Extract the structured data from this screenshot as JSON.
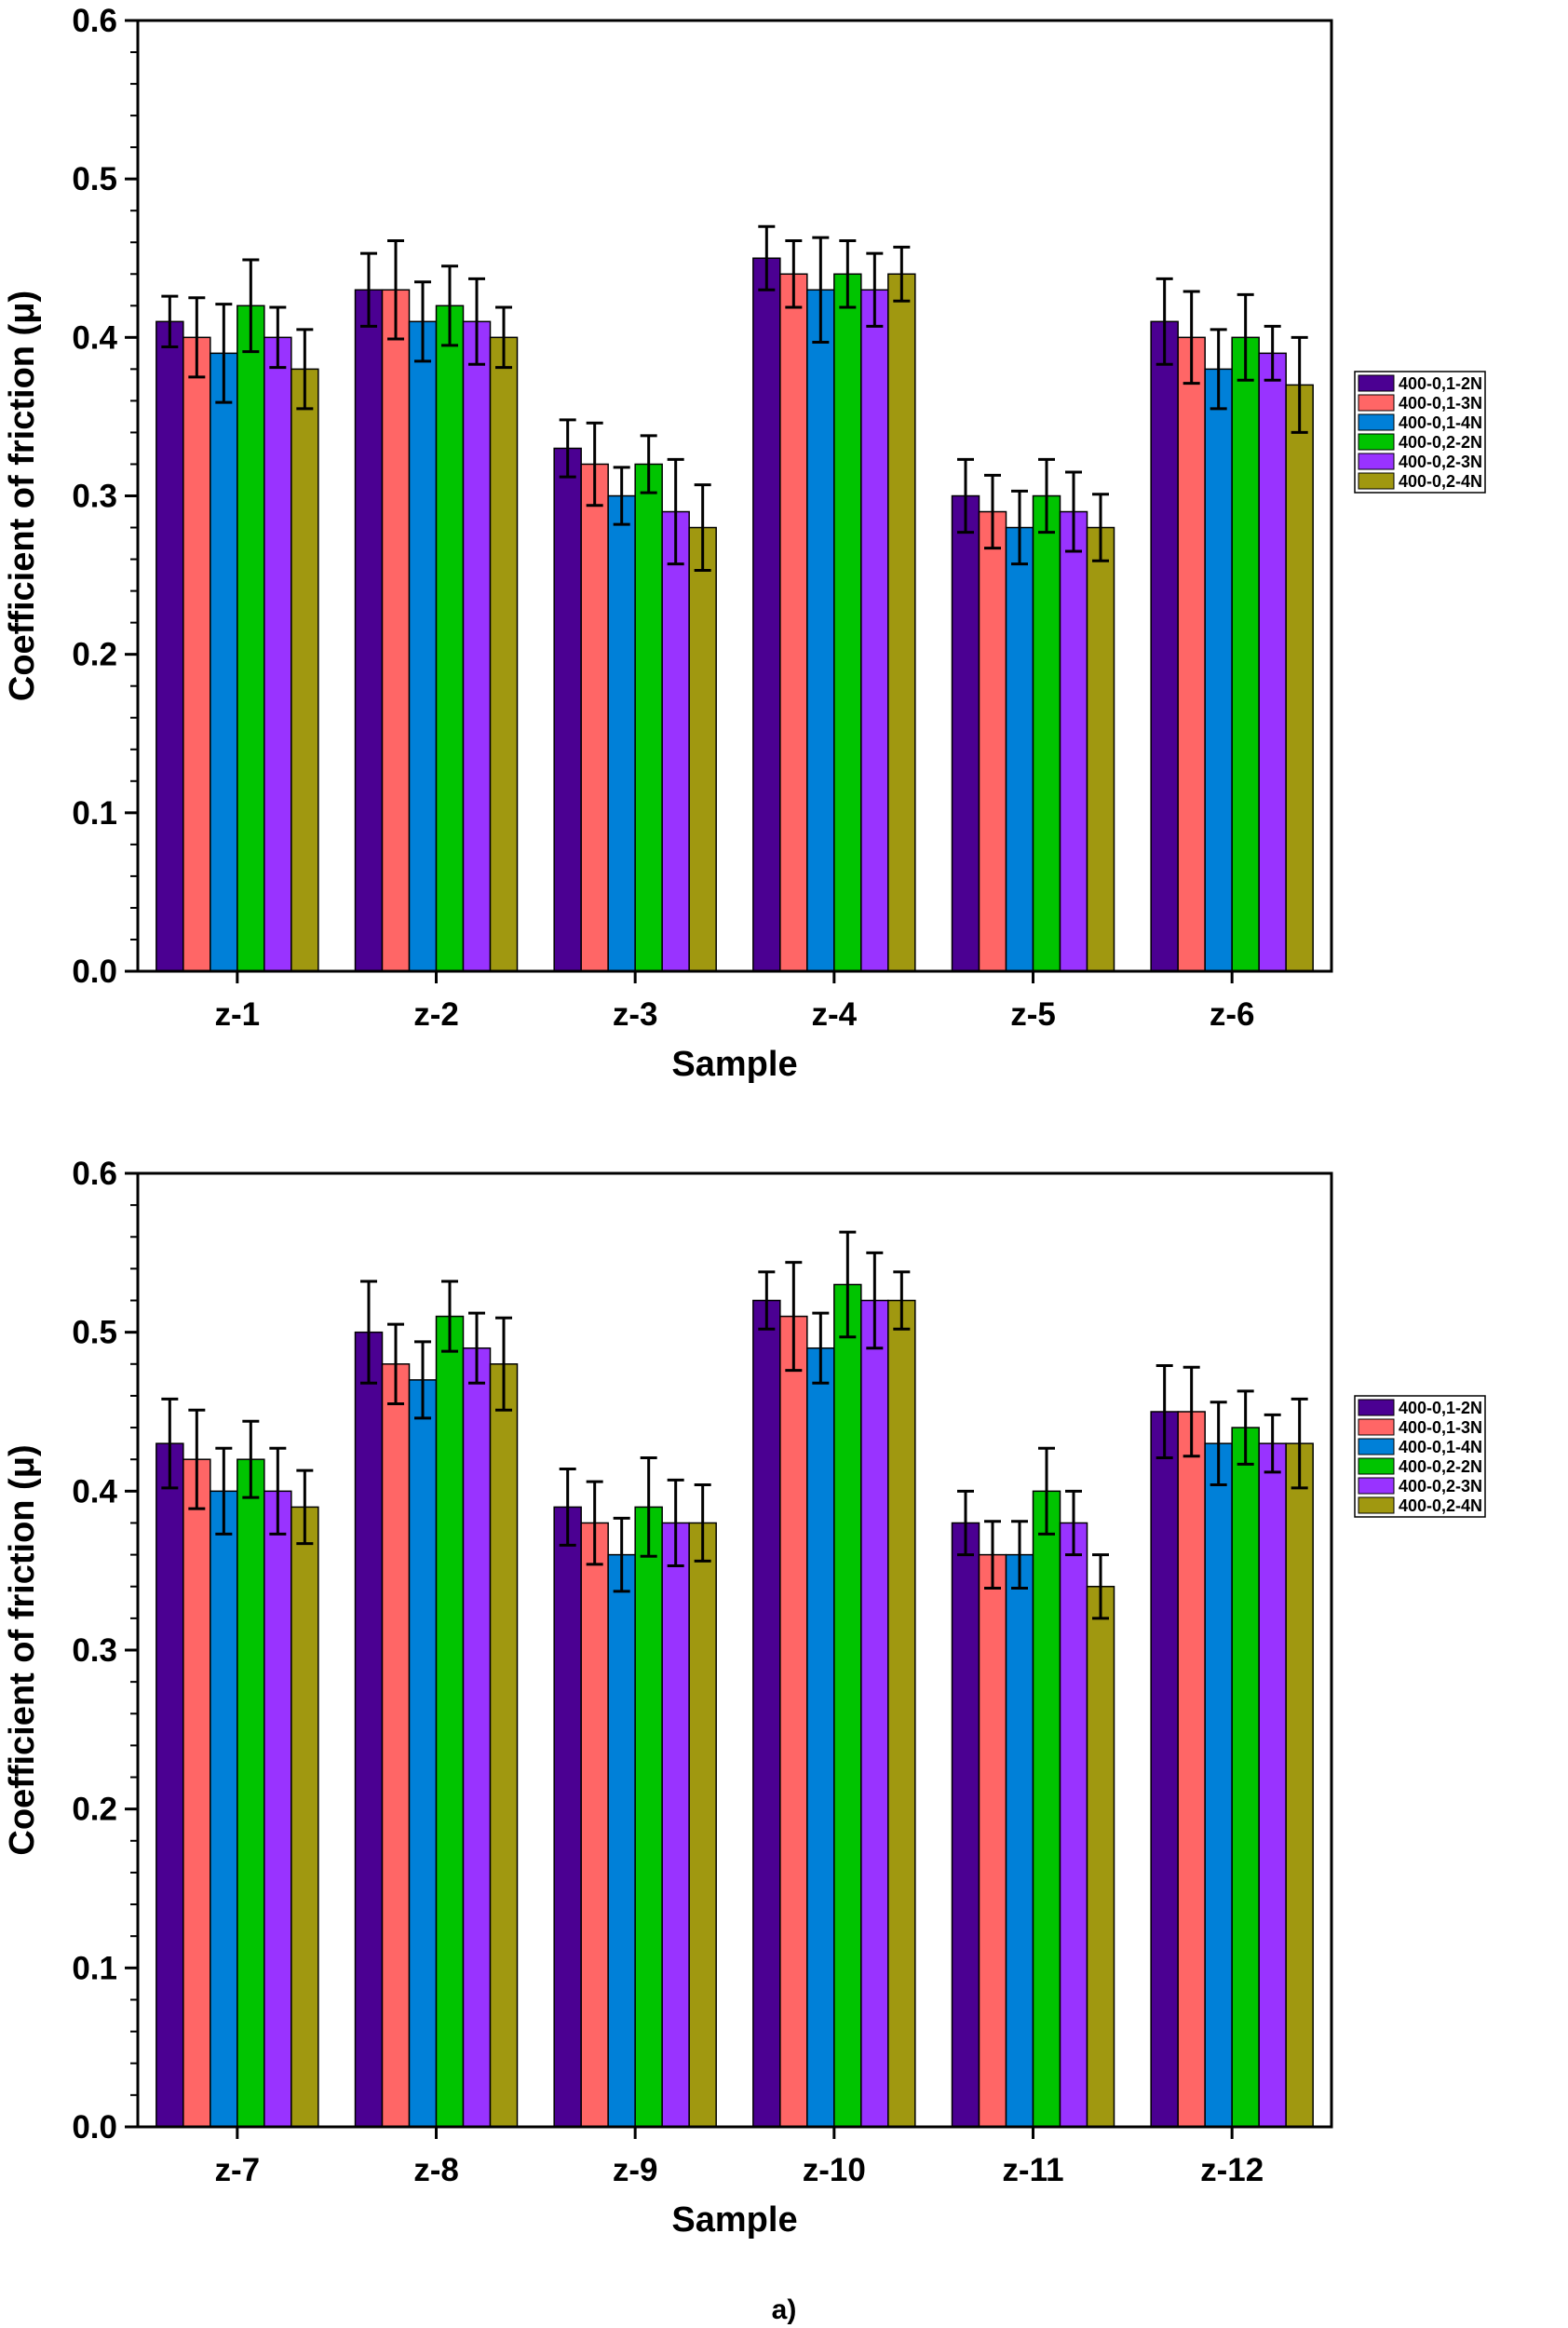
{
  "figure_label": "a)",
  "colors": [
    "#4B0092",
    "#FF6666",
    "#0080D8",
    "#00C400",
    "#9933FF",
    "#A09810"
  ],
  "chart_data": [
    {
      "type": "bar",
      "xlabel": "Sample",
      "ylabel": "Coefficient of friction (μ)",
      "ylim": [
        0,
        0.6
      ],
      "yticks": [
        "0.0",
        "0.1",
        "0.2",
        "0.3",
        "0.4",
        "0.5",
        "0.6"
      ],
      "legend_position": "right",
      "categories": [
        "z-1",
        "z-2",
        "z-3",
        "z-4",
        "z-5",
        "z-6"
      ],
      "series": [
        {
          "name": "400-0,1-2N",
          "values": [
            0.41,
            0.43,
            0.33,
            0.45,
            0.3,
            0.41
          ],
          "errors": [
            0.016,
            0.023,
            0.018,
            0.02,
            0.023,
            0.027
          ]
        },
        {
          "name": "400-0,1-3N",
          "values": [
            0.4,
            0.43,
            0.32,
            0.44,
            0.29,
            0.4
          ],
          "errors": [
            0.025,
            0.031,
            0.026,
            0.021,
            0.023,
            0.029
          ]
        },
        {
          "name": "400-0,1-4N",
          "values": [
            0.39,
            0.41,
            0.3,
            0.43,
            0.28,
            0.38
          ],
          "errors": [
            0.031,
            0.025,
            0.018,
            0.033,
            0.023,
            0.025
          ]
        },
        {
          "name": "400-0,2-2N",
          "values": [
            0.42,
            0.42,
            0.32,
            0.44,
            0.3,
            0.4
          ],
          "errors": [
            0.029,
            0.025,
            0.018,
            0.021,
            0.023,
            0.027
          ]
        },
        {
          "name": "400-0,2-3N",
          "values": [
            0.4,
            0.41,
            0.29,
            0.43,
            0.29,
            0.39
          ],
          "errors": [
            0.019,
            0.027,
            0.033,
            0.023,
            0.025,
            0.017
          ]
        },
        {
          "name": "400-0,2-4N",
          "values": [
            0.38,
            0.4,
            0.28,
            0.44,
            0.28,
            0.37
          ],
          "errors": [
            0.025,
            0.019,
            0.027,
            0.017,
            0.021,
            0.03
          ]
        }
      ]
    },
    {
      "type": "bar",
      "xlabel": "Sample",
      "ylabel": "Coefficient of friction (μ)",
      "ylim": [
        0,
        0.6
      ],
      "yticks": [
        "0.0",
        "0.1",
        "0.2",
        "0.3",
        "0.4",
        "0.5",
        "0.6"
      ],
      "legend_position": "right",
      "categories": [
        "z-7",
        "z-8",
        "z-9",
        "z-10",
        "z-11",
        "z-12"
      ],
      "series": [
        {
          "name": "400-0,1-2N",
          "values": [
            0.43,
            0.5,
            0.39,
            0.52,
            0.38,
            0.45
          ],
          "errors": [
            0.028,
            0.032,
            0.024,
            0.018,
            0.02,
            0.029
          ]
        },
        {
          "name": "400-0,1-3N",
          "values": [
            0.42,
            0.48,
            0.38,
            0.51,
            0.36,
            0.45
          ],
          "errors": [
            0.031,
            0.025,
            0.026,
            0.034,
            0.021,
            0.028
          ]
        },
        {
          "name": "400-0,1-4N",
          "values": [
            0.4,
            0.47,
            0.36,
            0.49,
            0.36,
            0.43
          ],
          "errors": [
            0.027,
            0.024,
            0.023,
            0.022,
            0.021,
            0.026
          ]
        },
        {
          "name": "400-0,2-2N",
          "values": [
            0.42,
            0.51,
            0.39,
            0.53,
            0.4,
            0.44
          ],
          "errors": [
            0.024,
            0.022,
            0.031,
            0.033,
            0.027,
            0.023
          ]
        },
        {
          "name": "400-0,2-3N",
          "values": [
            0.4,
            0.49,
            0.38,
            0.52,
            0.38,
            0.43
          ],
          "errors": [
            0.027,
            0.022,
            0.027,
            0.03,
            0.02,
            0.018
          ]
        },
        {
          "name": "400-0,2-4N",
          "values": [
            0.39,
            0.48,
            0.38,
            0.52,
            0.34,
            0.43
          ],
          "errors": [
            0.023,
            0.029,
            0.024,
            0.018,
            0.02,
            0.028
          ]
        }
      ]
    }
  ]
}
